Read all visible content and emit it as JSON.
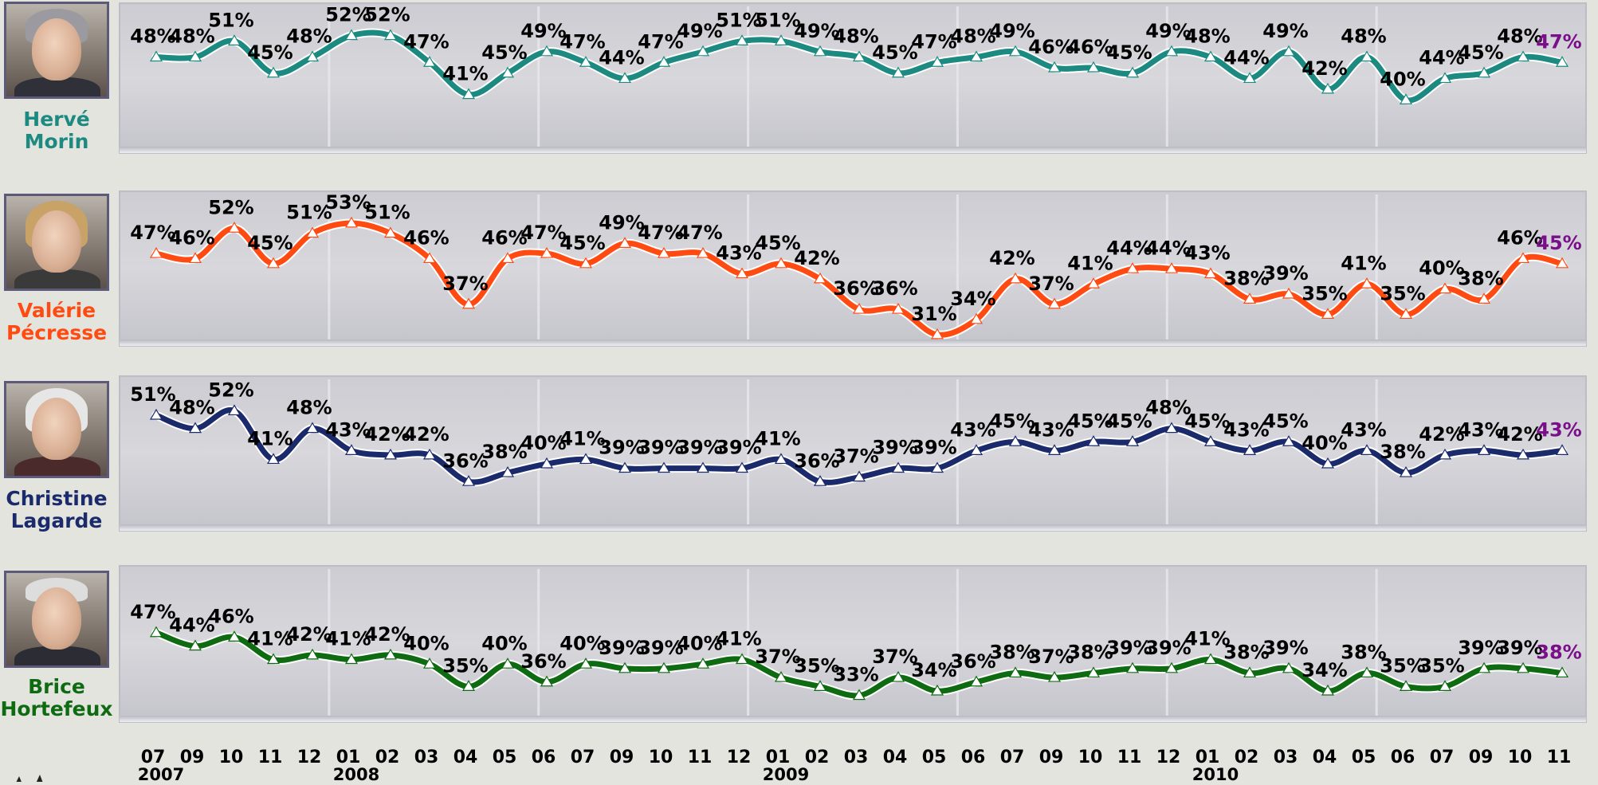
{
  "chart_data": {
    "type": "line",
    "categories": [
      "07",
      "09",
      "10",
      "11",
      "12",
      "01",
      "02",
      "03",
      "04",
      "05",
      "06",
      "07",
      "09",
      "10",
      "11",
      "12",
      "01",
      "02",
      "03",
      "04",
      "05",
      "06",
      "07",
      "09",
      "10",
      "11",
      "12",
      "01",
      "02",
      "03",
      "04",
      "05",
      "06",
      "07",
      "09",
      "10",
      "11"
    ],
    "year_labels": [
      {
        "index": 0,
        "label": "2007"
      },
      {
        "index": 5,
        "label": "2008"
      },
      {
        "index": 16,
        "label": "2009"
      },
      {
        "index": 27,
        "label": "2010"
      }
    ],
    "ylim": [
      30,
      53
    ],
    "grid": false,
    "last_label_color": "#7a0f8a",
    "series": [
      {
        "name": "Hervé\nMorin",
        "color": "#1c8a80",
        "values": [
          48,
          48,
          51,
          45,
          48,
          52,
          52,
          47,
          41,
          45,
          49,
          47,
          44,
          47,
          49,
          51,
          51,
          49,
          48,
          45,
          47,
          48,
          49,
          46,
          46,
          45,
          49,
          48,
          44,
          49,
          42,
          48,
          40,
          44,
          45,
          48,
          47
        ]
      },
      {
        "name": "Valérie\nPécresse",
        "color": "#ff4a12",
        "values": [
          47,
          46,
          52,
          45,
          51,
          53,
          51,
          46,
          37,
          46,
          47,
          45,
          49,
          47,
          47,
          43,
          45,
          42,
          36,
          36,
          31,
          34,
          42,
          37,
          41,
          44,
          44,
          43,
          38,
          39,
          35,
          41,
          35,
          40,
          38,
          46,
          45
        ]
      },
      {
        "name": "Christine\nLagarde",
        "color": "#1b2a6b",
        "values": [
          51,
          48,
          52,
          41,
          48,
          43,
          42,
          42,
          36,
          38,
          40,
          41,
          39,
          39,
          39,
          39,
          41,
          36,
          37,
          39,
          39,
          43,
          45,
          43,
          45,
          45,
          48,
          45,
          43,
          45,
          40,
          43,
          38,
          42,
          43,
          42,
          43
        ]
      },
      {
        "name": "Brice\nHortefeux",
        "color": "#0f6b12",
        "values": [
          47,
          44,
          46,
          41,
          42,
          41,
          42,
          40,
          35,
          40,
          36,
          40,
          39,
          39,
          40,
          41,
          37,
          35,
          33,
          37,
          34,
          36,
          38,
          37,
          38,
          39,
          39,
          41,
          38,
          39,
          34,
          38,
          35,
          35,
          39,
          39,
          38
        ]
      }
    ]
  }
}
